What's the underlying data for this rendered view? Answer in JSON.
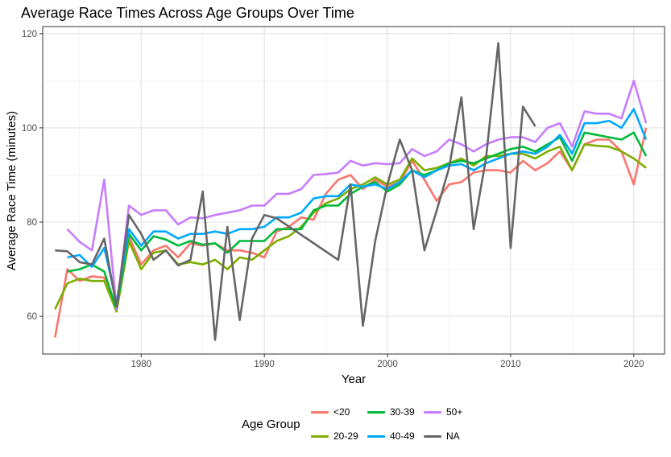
{
  "chart_data": {
    "type": "line",
    "title": "Average Race Times Across Age Groups Over Time",
    "xlabel": "Year",
    "ylabel": "Average Race Time (minutes)",
    "xlim": [
      1972,
      2022.5
    ],
    "ylim": [
      52,
      121.5
    ],
    "x_ticks": [
      1980,
      1990,
      2000,
      2010,
      2020
    ],
    "y_ticks": [
      60,
      80,
      100,
      120
    ],
    "grid": true,
    "legend": {
      "title": "Age Group",
      "position": "bottom"
    },
    "series": [
      {
        "name": "<20",
        "color": "#F8766D",
        "x": [
          1973,
          1974,
          1975,
          1976,
          1977,
          1978,
          1979,
          1980,
          1981,
          1982,
          1983,
          1984,
          1985,
          1986,
          1987,
          1988,
          1989,
          1990,
          1991,
          1992,
          1993,
          1994,
          1995,
          1996,
          1997,
          1998,
          1999,
          2000,
          2001,
          2002,
          2003,
          2004,
          2005,
          2006,
          2007,
          2008,
          2009,
          2010,
          2011,
          2012,
          2013,
          2014,
          2015,
          2016,
          2017,
          2018,
          2019,
          2020,
          2021
        ],
        "y": [
          55.5,
          70,
          67.5,
          68.5,
          68.2,
          62,
          77,
          71,
          74,
          75,
          72.5,
          75.5,
          75,
          75.5,
          74,
          74,
          73.5,
          72.5,
          78,
          79,
          81,
          80.5,
          86,
          89,
          90,
          87,
          89,
          87.5,
          88.5,
          93,
          89,
          84.5,
          88,
          88.5,
          90.5,
          91,
          91,
          90.5,
          93,
          91,
          92.5,
          95,
          91,
          96.5,
          97.5,
          97.5,
          95,
          88,
          100
        ]
      },
      {
        "name": "20-29",
        "color": "#7CAE00",
        "x": [
          1973,
          1974,
          1975,
          1976,
          1977,
          1978,
          1979,
          1980,
          1981,
          1982,
          1983,
          1984,
          1985,
          1986,
          1987,
          1988,
          1989,
          1990,
          1991,
          1992,
          1993,
          1994,
          1995,
          1996,
          1997,
          1998,
          1999,
          2000,
          2001,
          2002,
          2003,
          2004,
          2005,
          2006,
          2007,
          2008,
          2009,
          2010,
          2011,
          2012,
          2013,
          2014,
          2015,
          2016,
          2017,
          2018,
          2019,
          2020,
          2021
        ],
        "y": [
          61.5,
          67,
          68,
          67.5,
          67.5,
          61,
          76,
          70,
          73.5,
          74,
          71,
          71.5,
          71,
          72,
          70,
          72.5,
          72,
          74,
          76,
          77,
          79,
          82,
          84,
          85,
          87,
          88,
          89.5,
          88,
          89,
          93.5,
          91,
          91.5,
          92.5,
          93.5,
          92,
          94,
          94,
          94.5,
          94.5,
          93.5,
          95,
          96,
          91,
          96.5,
          96.2,
          96,
          95,
          93.5,
          91.5
        ]
      },
      {
        "name": "30-39",
        "color": "#00BA38",
        "x": [
          1974,
          1975,
          1976,
          1977,
          1978,
          1979,
          1980,
          1981,
          1982,
          1983,
          1984,
          1985,
          1986,
          1987,
          1988,
          1989,
          1990,
          1991,
          1992,
          1993,
          1994,
          1995,
          1996,
          1997,
          1998,
          1999,
          2000,
          2001,
          2002,
          2003,
          2004,
          2005,
          2006,
          2007,
          2008,
          2009,
          2010,
          2011,
          2012,
          2013,
          2014,
          2015,
          2016,
          2017,
          2018,
          2019,
          2020,
          2021
        ],
        "y": [
          69.5,
          70,
          71,
          69.5,
          61.5,
          77.5,
          74,
          77,
          76.3,
          75,
          76,
          75.2,
          75.5,
          73.5,
          76,
          76,
          76,
          78.5,
          78.5,
          78.5,
          82.5,
          83.5,
          83.5,
          86,
          87.5,
          88.5,
          86.5,
          88,
          91,
          90,
          91,
          92.5,
          93,
          92.5,
          93.5,
          94.5,
          95.5,
          96,
          95,
          96.5,
          98,
          93,
          99,
          98.5,
          98,
          97.5,
          99,
          94
        ]
      },
      {
        "name": "40-49",
        "color": "#00A9FF",
        "x": [
          1974,
          1975,
          1976,
          1977,
          1978,
          1979,
          1980,
          1981,
          1982,
          1983,
          1984,
          1985,
          1986,
          1987,
          1988,
          1989,
          1990,
          1991,
          1992,
          1993,
          1994,
          1995,
          1996,
          1997,
          1998,
          1999,
          2000,
          2001,
          2002,
          2003,
          2004,
          2005,
          2006,
          2007,
          2008,
          2009,
          2010,
          2011,
          2012,
          2013,
          2014,
          2015,
          2016,
          2017,
          2018,
          2019,
          2020,
          2021
        ],
        "y": [
          72.5,
          73,
          70.5,
          74.5,
          63,
          78.5,
          75,
          78,
          78,
          76.5,
          77.5,
          77.5,
          78,
          77.5,
          78.5,
          78.5,
          79,
          81,
          81,
          82,
          85,
          85.5,
          85.5,
          88,
          87.5,
          88,
          87,
          88.5,
          91,
          89.5,
          91,
          92,
          92.3,
          91,
          92.5,
          93.5,
          94.5,
          95,
          94.5,
          96,
          98.5,
          94.5,
          101,
          101,
          101.5,
          100,
          104,
          97.5
        ]
      },
      {
        "name": "50+",
        "color": "#C77CFF",
        "x": [
          1974,
          1975,
          1976,
          1977,
          1978,
          1979,
          1980,
          1981,
          1982,
          1983,
          1984,
          1985,
          1986,
          1987,
          1988,
          1989,
          1990,
          1991,
          1992,
          1993,
          1994,
          1995,
          1996,
          1997,
          1998,
          1999,
          2000,
          2001,
          2002,
          2003,
          2004,
          2005,
          2006,
          2007,
          2008,
          2009,
          2010,
          2011,
          2012,
          2013,
          2014,
          2015,
          2016,
          2017,
          2018,
          2019,
          2020,
          2021
        ],
        "y": [
          78.5,
          75.8,
          74,
          89,
          61.5,
          83.5,
          81.5,
          82.5,
          82.5,
          79.5,
          81,
          80.8,
          81.5,
          82,
          82.5,
          83.5,
          83.5,
          86,
          86,
          87,
          90,
          90.2,
          90.5,
          93,
          92,
          92.5,
          92.3,
          92.5,
          95.5,
          94,
          95,
          97.5,
          96.5,
          95,
          96.5,
          97.5,
          98,
          98,
          97,
          100,
          101,
          96,
          103.5,
          103,
          103,
          102,
          110,
          101
        ]
      },
      {
        "name": "NA",
        "color": "#666666",
        "x": [
          1973,
          1974,
          1975,
          1976,
          1977,
          1978,
          1979,
          1980,
          1981,
          1982,
          1983,
          1984,
          1985,
          1986,
          1987,
          1988,
          1989,
          1990,
          1991,
          1996,
          1997,
          1998,
          1999,
          2000,
          2001,
          2002,
          2003,
          2004,
          2005,
          2006,
          2007,
          2008,
          2009,
          2010,
          2011,
          2012
        ],
        "y": [
          74,
          73.8,
          71.5,
          71,
          76.5,
          62,
          81.5,
          77.5,
          72,
          74,
          70.8,
          72,
          86.5,
          55,
          79,
          59.2,
          76.5,
          81.5,
          80.8,
          72,
          88,
          58,
          76,
          88,
          97.5,
          91,
          74,
          82.5,
          91.5,
          106.5,
          78.5,
          93.5,
          118,
          74.5,
          104.5,
          100.3
        ]
      }
    ]
  }
}
